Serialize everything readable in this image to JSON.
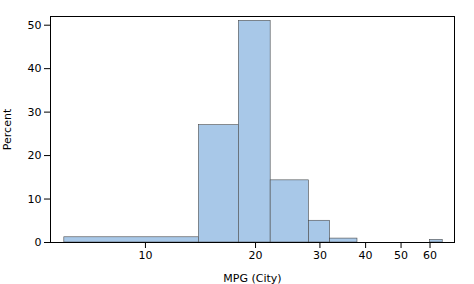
{
  "chart_data": {
    "type": "histogram",
    "xlabel": "MPG (City)",
    "ylabel": "Percent",
    "bins": [
      6,
      14,
      18,
      22,
      28,
      32,
      38,
      60,
      65
    ],
    "values": [
      1.2,
      27.0,
      51.0,
      14.3,
      5.0,
      0.9,
      0.0,
      0.6
    ],
    "color": "#a8c8e8",
    "log": "x",
    "xlim": [
      5.5,
      70
    ],
    "ylim": [
      0,
      52
    ],
    "xticks": [
      10,
      20,
      30,
      40,
      50,
      60
    ],
    "yticks": [
      0,
      10,
      20,
      30,
      40,
      50
    ],
    "grid": false
  }
}
